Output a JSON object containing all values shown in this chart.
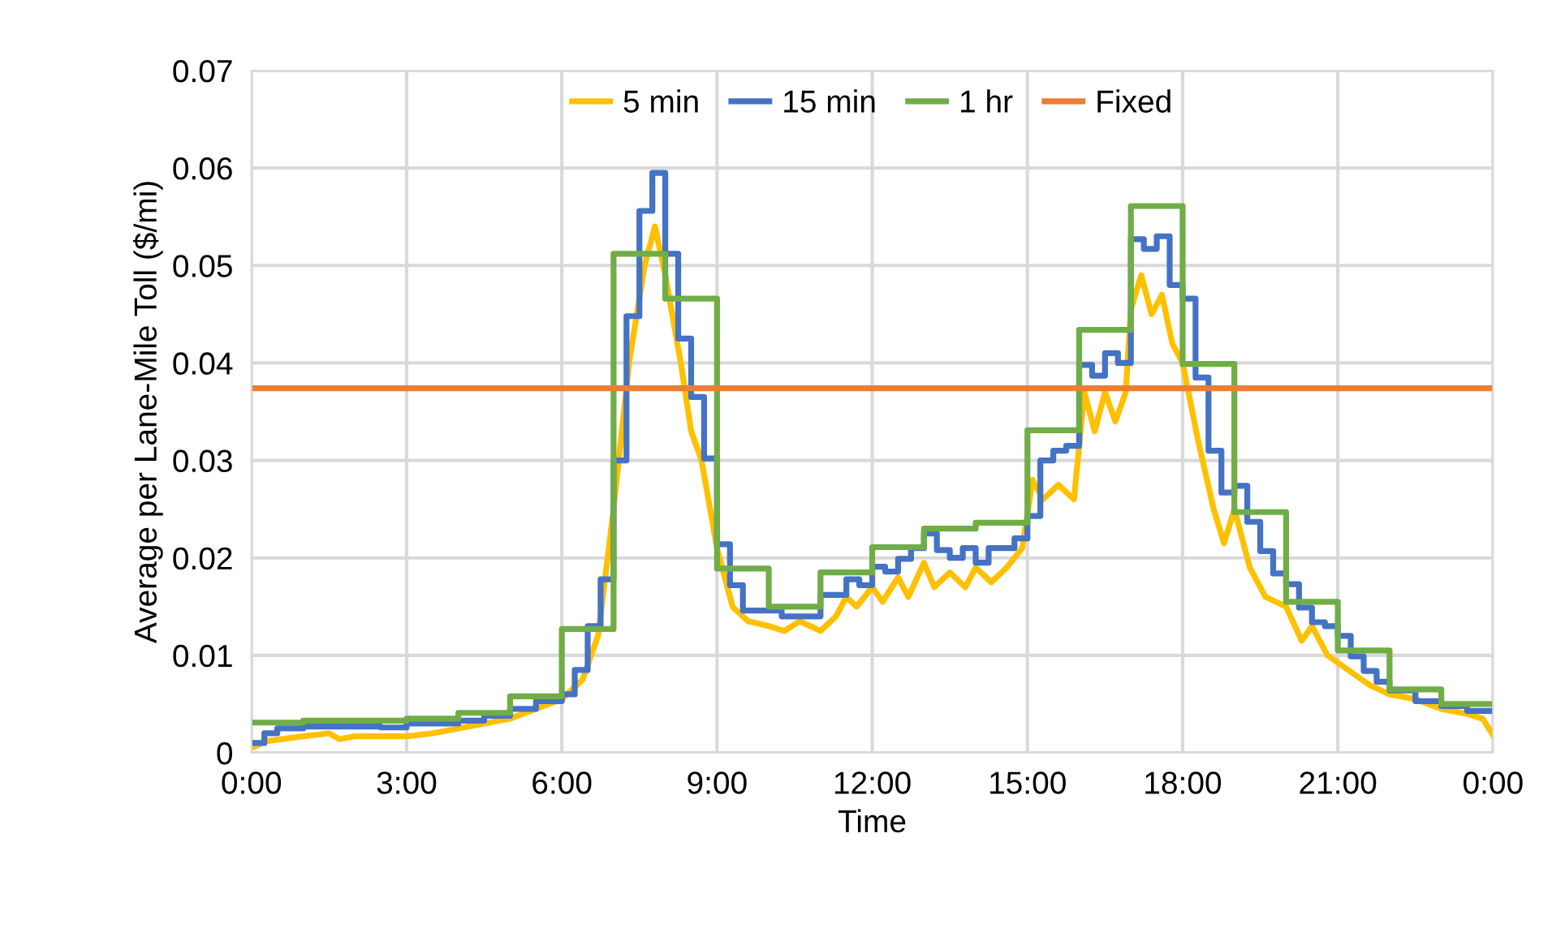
{
  "chart_data": {
    "type": "line",
    "xlabel": "Time",
    "ylabel": "Average per Lane-Mile Toll ($/mi)",
    "xlim": [
      0,
      24
    ],
    "ylim": [
      0,
      0.07
    ],
    "xticks": [
      {
        "value": 0,
        "label": "0:00"
      },
      {
        "value": 3,
        "label": "3:00"
      },
      {
        "value": 6,
        "label": "6:00"
      },
      {
        "value": 9,
        "label": "9:00"
      },
      {
        "value": 12,
        "label": "12:00"
      },
      {
        "value": 15,
        "label": "15:00"
      },
      {
        "value": 18,
        "label": "18:00"
      },
      {
        "value": 21,
        "label": "21:00"
      },
      {
        "value": 24,
        "label": "0:00"
      }
    ],
    "yticks": [
      0,
      0.01,
      0.02,
      0.03,
      0.04,
      0.05,
      0.06,
      0.07
    ],
    "grid": true,
    "legend": "top",
    "marker": "none",
    "line_style": "solid",
    "series": [
      {
        "name": "5 min",
        "color": "#ffc000",
        "x": [
          0,
          0.3,
          1,
          1.5,
          1.7,
          2,
          3,
          3.5,
          4,
          4.5,
          5,
          5.5,
          6,
          6.4,
          6.7,
          7.0,
          7.3,
          7.6,
          7.8,
          8.0,
          8.3,
          8.5,
          8.7,
          9.0,
          9.3,
          9.6,
          10,
          10.3,
          10.6,
          11,
          11.3,
          11.5,
          11.7,
          12,
          12.2,
          12.5,
          12.7,
          13,
          13.2,
          13.5,
          13.8,
          14,
          14.3,
          14.6,
          14.9,
          15.1,
          15.3,
          15.6,
          15.9,
          16.1,
          16.3,
          16.5,
          16.7,
          16.9,
          17.0,
          17.2,
          17.4,
          17.6,
          17.8,
          18.0,
          18.3,
          18.6,
          18.8,
          19.0,
          19.3,
          19.6,
          20,
          20.3,
          20.5,
          20.8,
          21.2,
          21.6,
          22,
          22.5,
          23,
          23.5,
          23.8,
          24
        ],
        "values": [
          0.0005,
          0.0012,
          0.0017,
          0.002,
          0.0014,
          0.0017,
          0.0017,
          0.002,
          0.0025,
          0.003,
          0.0035,
          0.0045,
          0.0055,
          0.0075,
          0.012,
          0.025,
          0.04,
          0.05,
          0.054,
          0.049,
          0.04,
          0.033,
          0.03,
          0.021,
          0.015,
          0.0135,
          0.013,
          0.0125,
          0.0135,
          0.0125,
          0.014,
          0.016,
          0.015,
          0.017,
          0.0155,
          0.018,
          0.016,
          0.0195,
          0.017,
          0.0185,
          0.017,
          0.019,
          0.0175,
          0.019,
          0.021,
          0.028,
          0.026,
          0.0275,
          0.026,
          0.037,
          0.033,
          0.037,
          0.034,
          0.037,
          0.0455,
          0.049,
          0.045,
          0.047,
          0.042,
          0.04,
          0.032,
          0.025,
          0.0215,
          0.025,
          0.019,
          0.016,
          0.015,
          0.0115,
          0.013,
          0.01,
          0.0085,
          0.007,
          0.006,
          0.0055,
          0.0045,
          0.004,
          0.0035,
          0.0018
        ]
      },
      {
        "name": "15 min",
        "type": "step",
        "color": "#4472c4",
        "x": [
          0,
          0.25,
          0.5,
          1.0,
          2.5,
          3.0,
          4.0,
          4.5,
          5.0,
          5.5,
          6.0,
          6.25,
          6.5,
          6.75,
          7.0,
          7.25,
          7.5,
          7.75,
          8.0,
          8.25,
          8.5,
          8.75,
          9.0,
          9.25,
          9.5,
          10.25,
          11.0,
          11.5,
          11.75,
          12.0,
          12.25,
          12.5,
          12.75,
          13.0,
          13.25,
          13.5,
          13.75,
          14.0,
          14.25,
          14.5,
          14.75,
          15.0,
          15.25,
          15.5,
          15.75,
          16.0,
          16.25,
          16.5,
          16.75,
          17.0,
          17.25,
          17.5,
          17.75,
          18.0,
          18.25,
          18.5,
          18.75,
          19.0,
          19.25,
          19.5,
          19.75,
          20.0,
          20.25,
          20.5,
          20.75,
          21.0,
          21.25,
          21.5,
          21.75,
          22.0,
          22.5,
          23.0,
          23.5,
          24
        ],
        "values": [
          0.001,
          0.002,
          0.0025,
          0.0027,
          0.0026,
          0.003,
          0.0033,
          0.0038,
          0.0045,
          0.0053,
          0.006,
          0.0085,
          0.013,
          0.0178,
          0.03,
          0.0448,
          0.0556,
          0.0595,
          0.0512,
          0.0425,
          0.0365,
          0.0302,
          0.0214,
          0.0172,
          0.0146,
          0.014,
          0.0162,
          0.0178,
          0.0172,
          0.0191,
          0.0186,
          0.0199,
          0.021,
          0.0225,
          0.0208,
          0.02,
          0.021,
          0.0195,
          0.021,
          0.021,
          0.022,
          0.0243,
          0.03,
          0.031,
          0.0315,
          0.0398,
          0.0387,
          0.041,
          0.04,
          0.0527,
          0.0517,
          0.053,
          0.048,
          0.0466,
          0.0385,
          0.031,
          0.0267,
          0.0274,
          0.0237,
          0.0207,
          0.0184,
          0.0173,
          0.0149,
          0.0134,
          0.013,
          0.012,
          0.0099,
          0.0084,
          0.0073,
          0.0064,
          0.0053,
          0.0048,
          0.0043,
          0.0043
        ]
      },
      {
        "name": "1 hr",
        "type": "step",
        "color": "#70ad47",
        "x": [
          0,
          1,
          2,
          3,
          4,
          5,
          6,
          7,
          8,
          9,
          10,
          11,
          12,
          13,
          14,
          15,
          16,
          17,
          18,
          19,
          20,
          21,
          22,
          23,
          24
        ],
        "values": [
          0.0031,
          0.0033,
          0.0033,
          0.0035,
          0.0041,
          0.0058,
          0.0127,
          0.0512,
          0.0466,
          0.0189,
          0.015,
          0.0185,
          0.0211,
          0.023,
          0.0236,
          0.0331,
          0.0434,
          0.0561,
          0.0399,
          0.0247,
          0.0155,
          0.0105,
          0.0065,
          0.005,
          0.005
        ]
      },
      {
        "name": "Fixed",
        "color": "#ed7d31",
        "x": [
          0,
          24
        ],
        "values": [
          0.0374,
          0.0374
        ]
      }
    ]
  }
}
